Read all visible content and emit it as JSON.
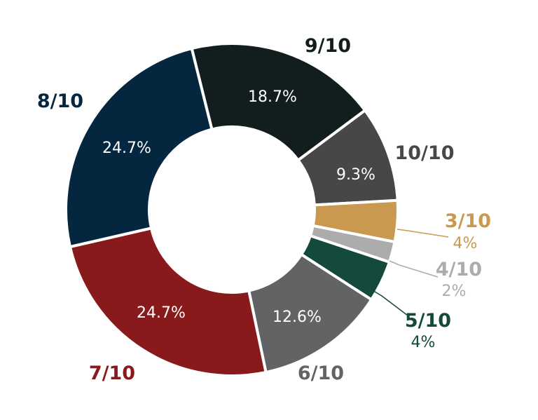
{
  "chart_data": {
    "type": "pie",
    "title": "",
    "categories": [
      "9/10",
      "10/10",
      "3/10",
      "4/10",
      "5/10",
      "6/10",
      "7/10",
      "8/10"
    ],
    "values": [
      18.7,
      9.3,
      4,
      2,
      4,
      12.6,
      24.7,
      24.7
    ],
    "value_labels": [
      "18.7%",
      "9.3%",
      "4%",
      "2%",
      "4%",
      "12.6%",
      "24.7%",
      "24.7%"
    ],
    "colors": [
      "#121d1d",
      "#474747",
      "#c9994f",
      "#acacac",
      "#134a3b",
      "#626365",
      "#891a1b",
      "#04273f"
    ],
    "donut": true,
    "start_angle_deg": -14,
    "legend": "none"
  }
}
